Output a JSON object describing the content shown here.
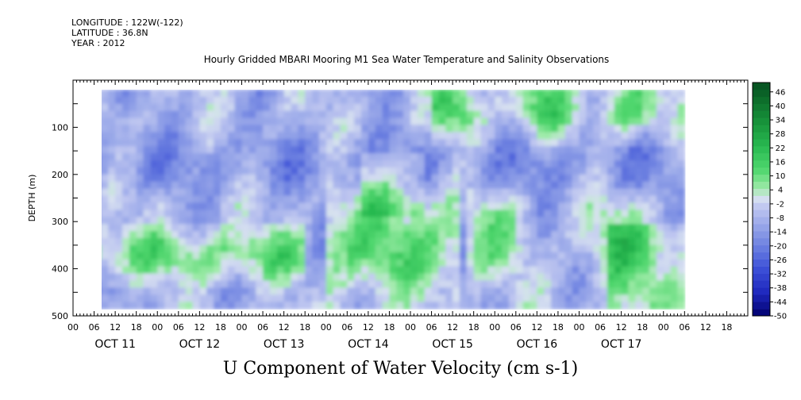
{
  "header": {
    "longitude": "LONGITUDE : 122W(-122)",
    "latitude": "LATITUDE : 36.8N",
    "year": "YEAR : 2012",
    "title": "Hourly Gridded MBARI Mooring M1 Sea Water Temperature and Salinity Observations"
  },
  "footer_title": "U Component of Water Velocity (cm s-1)",
  "chart_data": {
    "type": "heatmap",
    "title": "Hourly Gridded MBARI Mooring M1 Sea Water Temperature and Salinity Observations",
    "xlabel": "",
    "ylabel": "DEPTH (m)",
    "units": "cm s-1",
    "variable": "U Component of Water Velocity (cm s-1)",
    "ylim": [
      500,
      0
    ],
    "y_tick_values": [
      100,
      200,
      300,
      400,
      500
    ],
    "y_tick_labels": [
      "100",
      "200",
      "300",
      "400",
      "500"
    ],
    "x_hour_labels": [
      "00",
      "06",
      "12",
      "18",
      "00",
      "06",
      "12",
      "18",
      "00",
      "06",
      "12",
      "18",
      "00",
      "06",
      "12",
      "18",
      "00",
      "06",
      "12",
      "18",
      "00",
      "06",
      "12",
      "18",
      "00",
      "06",
      "12",
      "18",
      "00",
      "06",
      "12",
      "18"
    ],
    "x_day_labels": [
      "OCT 11",
      "OCT 12",
      "OCT 13",
      "OCT 14",
      "OCT 15",
      "OCT 16",
      "OCT 17"
    ],
    "data_extent": {
      "start": "2012-10-11 06:00",
      "end": "2012-10-18 06:00",
      "depth_top_m": 20,
      "depth_bottom_m": 485
    },
    "colorbar": {
      "min": -50,
      "max": 50,
      "tick_labels": [
        "46",
        "40",
        "34",
        "28",
        "22",
        "16",
        "10",
        "4",
        "-2",
        "-8",
        "-14",
        "-20",
        "-26",
        "-32",
        "-38",
        "-44",
        "-50"
      ],
      "levels": [
        -50,
        -47,
        -44,
        -41,
        -38,
        -35,
        -32,
        -29,
        -26,
        -23,
        -20,
        -17,
        -14,
        -11,
        -8,
        -5,
        -2,
        1,
        4,
        7,
        10,
        13,
        16,
        19,
        22,
        25,
        28,
        31,
        34,
        37,
        40,
        43,
        46,
        49
      ]
    },
    "pattern_summary": [
      {
        "depth_range_m": [
          20,
          250
        ],
        "time": "most of period",
        "dominant_value_range": [
          -14,
          -4
        ]
      },
      {
        "depth_range_m": [
          300,
          420
        ],
        "time": "OCT 11 06 - OCT 13 18",
        "dominant_value_range": [
          4,
          16
        ]
      },
      {
        "depth_range_m": [
          220,
          480
        ],
        "time": "OCT 14 00 - OCT 15 18",
        "dominant_value_range": [
          4,
          16
        ]
      },
      {
        "depth_range_m": [
          20,
          120
        ],
        "time": "OCT 15 00 - OCT 17 18",
        "dominant_value_range": [
          4,
          19
        ]
      }
    ]
  }
}
